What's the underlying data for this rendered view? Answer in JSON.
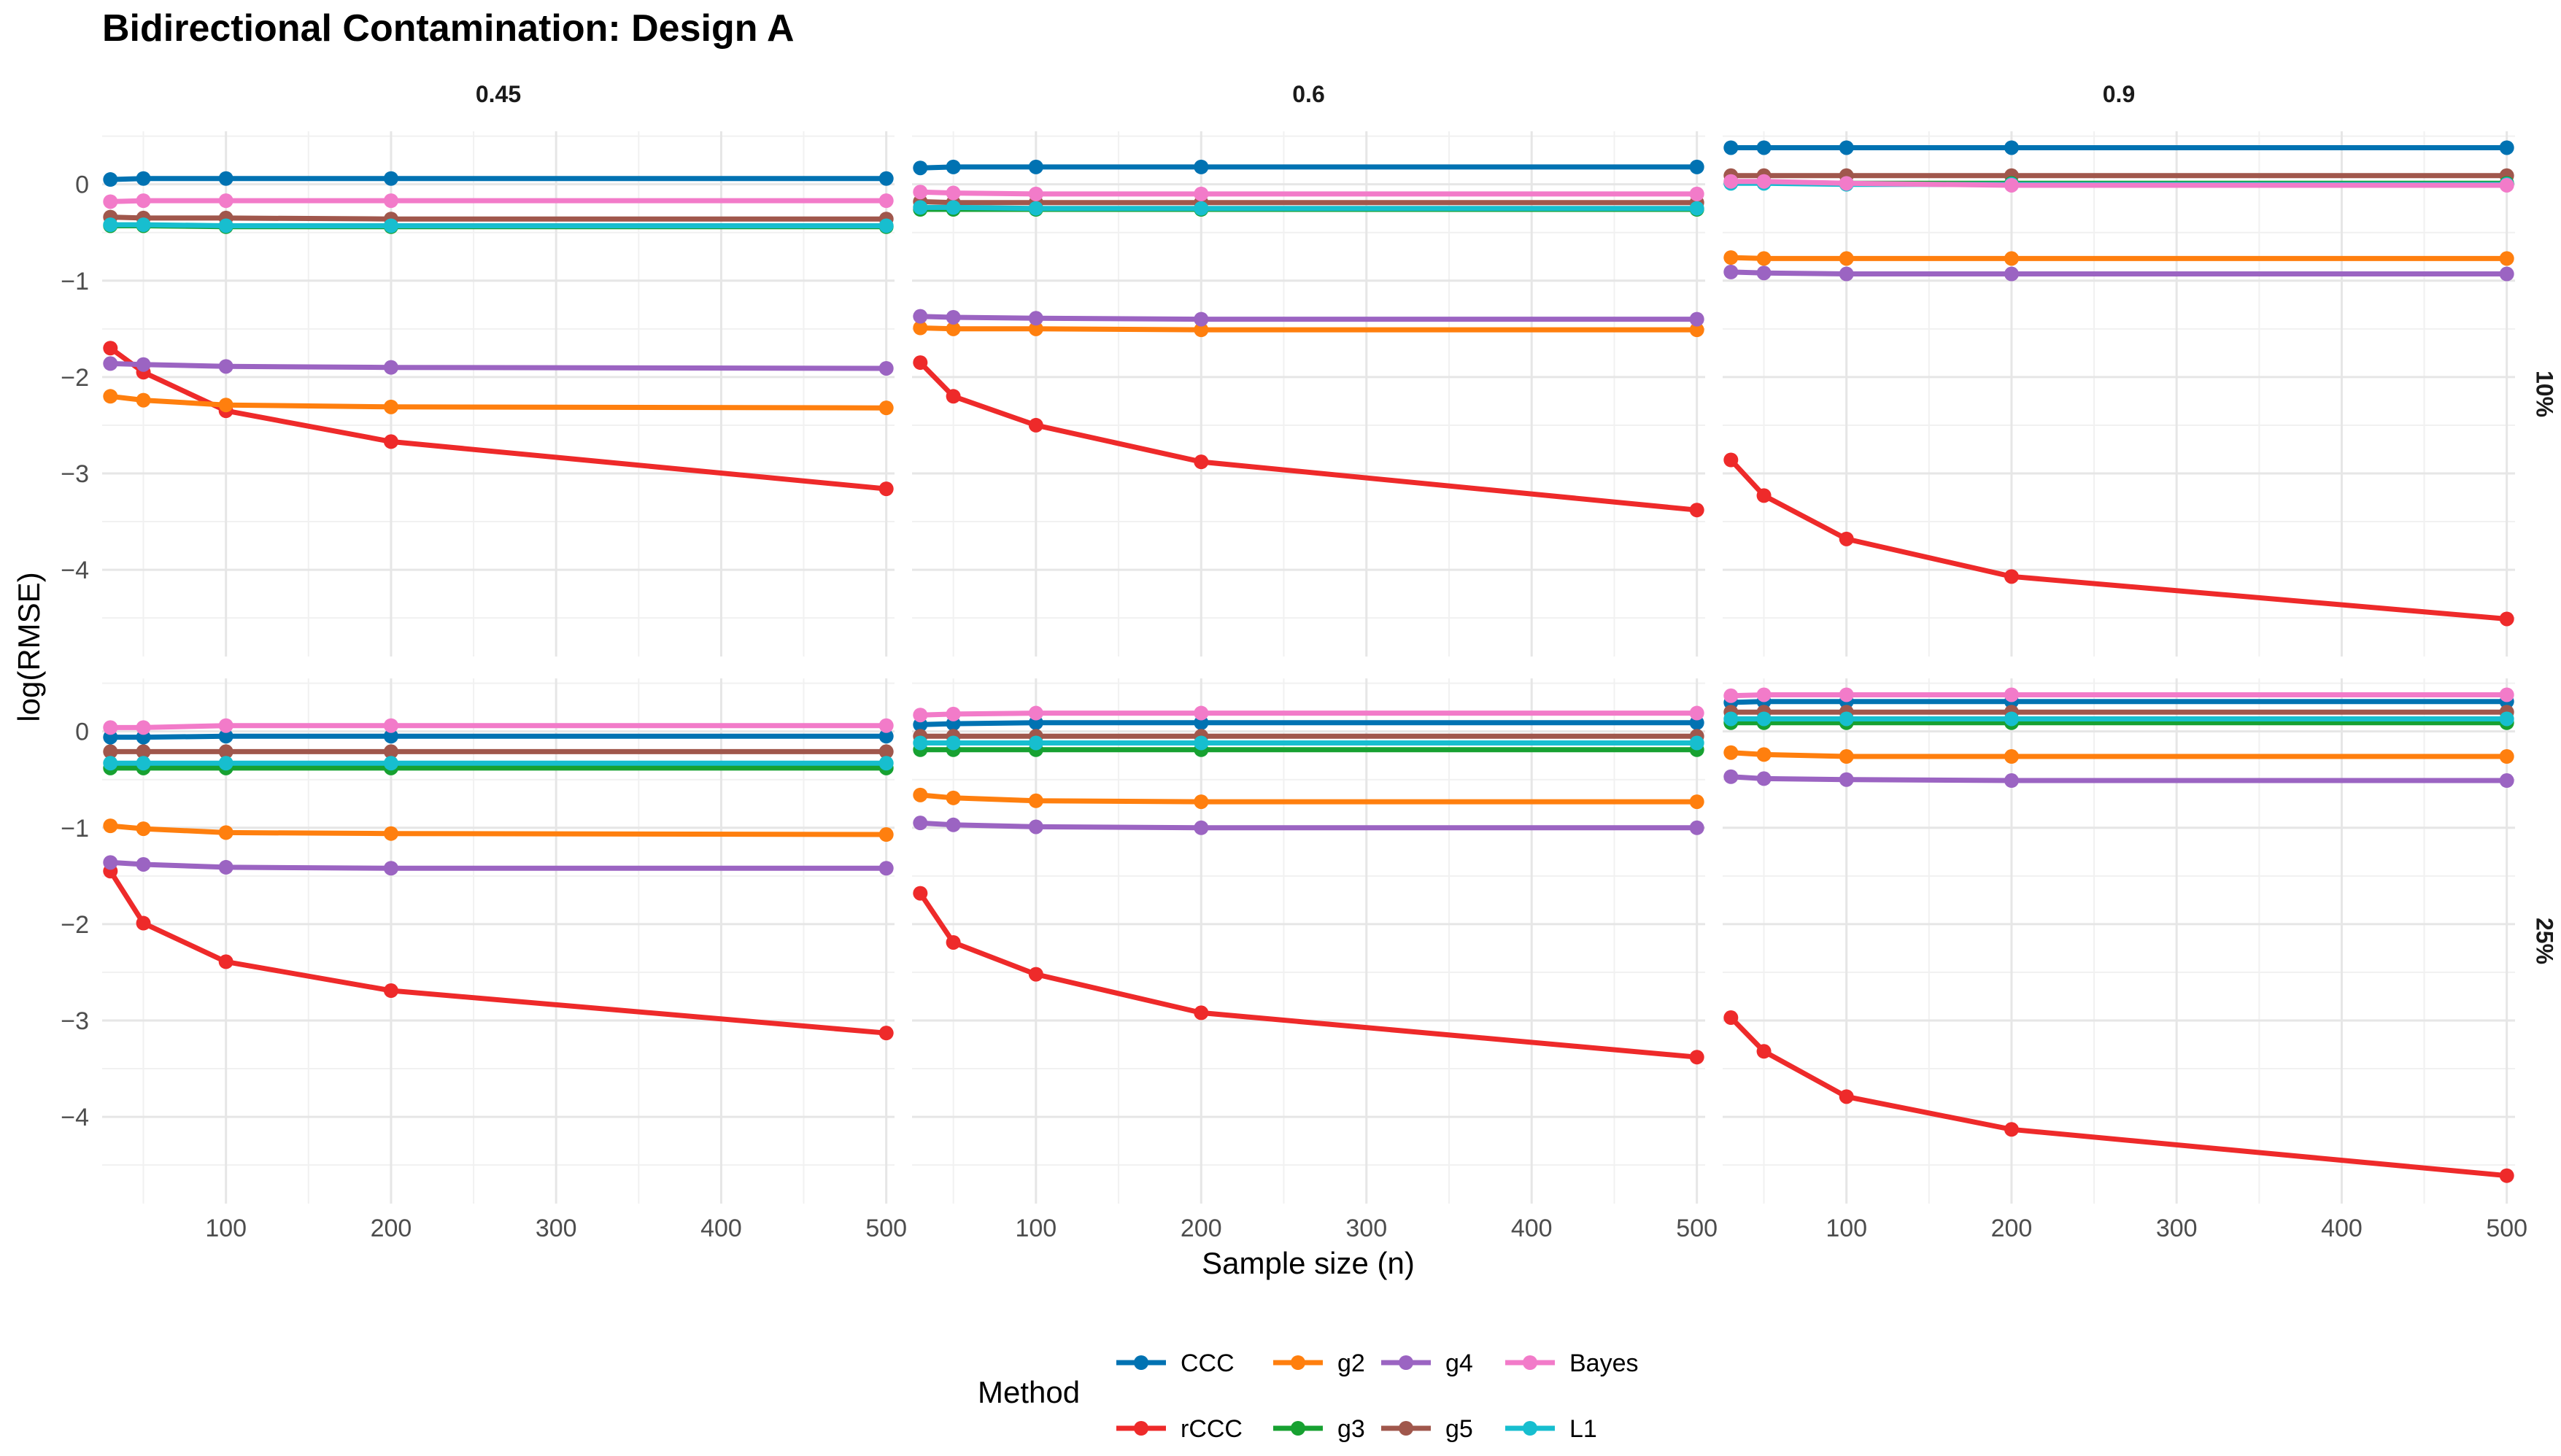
{
  "chart_data": {
    "type": "line",
    "title": "Bidirectional Contamination: Design A",
    "xlabel": "Sample size (n)",
    "ylabel": "log(RMSE)",
    "xlim": [
      25,
      505
    ],
    "ylim": [
      -4.9,
      0.55
    ],
    "x_ticks": [
      100,
      200,
      300,
      400,
      500
    ],
    "y_ticks": [
      0,
      -1,
      -2,
      -3,
      -4
    ],
    "x_tick_labels": [
      "100",
      "200",
      "300",
      "400",
      "500"
    ],
    "y_tick_labels": [
      "0",
      "−1",
      "−2",
      "−3",
      "−4"
    ],
    "x": [
      30,
      50,
      100,
      200,
      500
    ],
    "col_facets": [
      "0.45",
      "0.6",
      "0.9"
    ],
    "row_facets": [
      "10%",
      "25%"
    ],
    "legend": {
      "title": "Method",
      "position": "bottom",
      "entries": [
        {
          "name": "CCC",
          "color": "#0072B2"
        },
        {
          "name": "rCCC",
          "color": "#EE2A2A"
        },
        {
          "name": "g2",
          "color": "#FF7F0E"
        },
        {
          "name": "g3",
          "color": "#17A131"
        },
        {
          "name": "g4",
          "color": "#9B64C2"
        },
        {
          "name": "g5",
          "color": "#A0574C"
        },
        {
          "name": "Bayes",
          "color": "#F27BC9"
        },
        {
          "name": "L1",
          "color": "#17BECF"
        }
      ]
    },
    "panels": [
      {
        "col": "0.45",
        "row": "10%",
        "series": [
          {
            "name": "CCC",
            "values": [
              0.05,
              0.06,
              0.06,
              0.06,
              0.06
            ]
          },
          {
            "name": "rCCC",
            "values": [
              -1.7,
              -1.95,
              -2.35,
              -2.67,
              -3.16
            ]
          },
          {
            "name": "g2",
            "values": [
              -2.2,
              -2.24,
              -2.29,
              -2.31,
              -2.32
            ]
          },
          {
            "name": "g3",
            "values": [
              -0.43,
              -0.43,
              -0.44,
              -0.44,
              -0.44
            ]
          },
          {
            "name": "g4",
            "values": [
              -1.86,
              -1.87,
              -1.89,
              -1.9,
              -1.91
            ]
          },
          {
            "name": "g5",
            "values": [
              -0.34,
              -0.35,
              -0.35,
              -0.36,
              -0.36
            ]
          },
          {
            "name": "Bayes",
            "values": [
              -0.18,
              -0.17,
              -0.17,
              -0.17,
              -0.17
            ]
          },
          {
            "name": "L1",
            "values": [
              -0.42,
              -0.42,
              -0.43,
              -0.43,
              -0.43
            ]
          }
        ]
      },
      {
        "col": "0.6",
        "row": "10%",
        "series": [
          {
            "name": "CCC",
            "values": [
              0.17,
              0.18,
              0.18,
              0.18,
              0.18
            ]
          },
          {
            "name": "rCCC",
            "values": [
              -1.85,
              -2.2,
              -2.5,
              -2.88,
              -3.38
            ]
          },
          {
            "name": "g2",
            "values": [
              -1.49,
              -1.5,
              -1.5,
              -1.51,
              -1.51
            ]
          },
          {
            "name": "g3",
            "values": [
              -0.26,
              -0.26,
              -0.26,
              -0.26,
              -0.26
            ]
          },
          {
            "name": "g4",
            "values": [
              -1.37,
              -1.38,
              -1.39,
              -1.4,
              -1.4
            ]
          },
          {
            "name": "g5",
            "values": [
              -0.18,
              -0.19,
              -0.19,
              -0.19,
              -0.19
            ]
          },
          {
            "name": "Bayes",
            "values": [
              -0.08,
              -0.09,
              -0.1,
              -0.1,
              -0.1
            ]
          },
          {
            "name": "L1",
            "values": [
              -0.24,
              -0.24,
              -0.25,
              -0.25,
              -0.25
            ]
          }
        ]
      },
      {
        "col": "0.9",
        "row": "10%",
        "series": [
          {
            "name": "CCC",
            "values": [
              0.38,
              0.38,
              0.38,
              0.38,
              0.38
            ]
          },
          {
            "name": "rCCC",
            "values": [
              -2.86,
              -3.23,
              -3.68,
              -4.07,
              -4.51
            ]
          },
          {
            "name": "g2",
            "values": [
              -0.76,
              -0.77,
              -0.77,
              -0.77,
              -0.77
            ]
          },
          {
            "name": "g3",
            "values": [
              0.02,
              0.02,
              0.01,
              0.01,
              0.01
            ]
          },
          {
            "name": "g4",
            "values": [
              -0.91,
              -0.92,
              -0.93,
              -0.93,
              -0.93
            ]
          },
          {
            "name": "g5",
            "values": [
              0.09,
              0.09,
              0.09,
              0.09,
              0.09
            ]
          },
          {
            "name": "Bayes",
            "values": [
              0.03,
              0.03,
              0.01,
              -0.01,
              -0.01
            ]
          },
          {
            "name": "L1",
            "values": [
              0.01,
              0.01,
              0.0,
              0.0,
              0.0
            ]
          }
        ]
      },
      {
        "col": "0.45",
        "row": "25%",
        "series": [
          {
            "name": "CCC",
            "values": [
              -0.06,
              -0.06,
              -0.05,
              -0.05,
              -0.05
            ]
          },
          {
            "name": "rCCC",
            "values": [
              -1.45,
              -1.99,
              -2.39,
              -2.69,
              -3.13
            ]
          },
          {
            "name": "g2",
            "values": [
              -0.98,
              -1.01,
              -1.05,
              -1.06,
              -1.07
            ]
          },
          {
            "name": "g3",
            "values": [
              -0.38,
              -0.38,
              -0.38,
              -0.38,
              -0.38
            ]
          },
          {
            "name": "g4",
            "values": [
              -1.36,
              -1.38,
              -1.41,
              -1.42,
              -1.42
            ]
          },
          {
            "name": "g5",
            "values": [
              -0.21,
              -0.21,
              -0.21,
              -0.21,
              -0.21
            ]
          },
          {
            "name": "Bayes",
            "values": [
              0.04,
              0.04,
              0.06,
              0.06,
              0.06
            ]
          },
          {
            "name": "L1",
            "values": [
              -0.33,
              -0.33,
              -0.33,
              -0.33,
              -0.33
            ]
          }
        ]
      },
      {
        "col": "0.6",
        "row": "25%",
        "series": [
          {
            "name": "CCC",
            "values": [
              0.07,
              0.08,
              0.09,
              0.09,
              0.09
            ]
          },
          {
            "name": "rCCC",
            "values": [
              -1.68,
              -2.19,
              -2.52,
              -2.92,
              -3.38
            ]
          },
          {
            "name": "g2",
            "values": [
              -0.66,
              -0.69,
              -0.72,
              -0.73,
              -0.73
            ]
          },
          {
            "name": "g3",
            "values": [
              -0.19,
              -0.19,
              -0.19,
              -0.19,
              -0.19
            ]
          },
          {
            "name": "g4",
            "values": [
              -0.95,
              -0.97,
              -0.99,
              -1.0,
              -1.0
            ]
          },
          {
            "name": "g5",
            "values": [
              -0.05,
              -0.05,
              -0.05,
              -0.05,
              -0.05
            ]
          },
          {
            "name": "Bayes",
            "values": [
              0.17,
              0.18,
              0.19,
              0.19,
              0.19
            ]
          },
          {
            "name": "L1",
            "values": [
              -0.12,
              -0.12,
              -0.12,
              -0.12,
              -0.12
            ]
          }
        ]
      },
      {
        "col": "0.9",
        "row": "25%",
        "series": [
          {
            "name": "CCC",
            "values": [
              0.3,
              0.31,
              0.31,
              0.31,
              0.31
            ]
          },
          {
            "name": "rCCC",
            "values": [
              -2.97,
              -3.32,
              -3.79,
              -4.13,
              -4.61
            ]
          },
          {
            "name": "g2",
            "values": [
              -0.22,
              -0.24,
              -0.26,
              -0.26,
              -0.26
            ]
          },
          {
            "name": "g3",
            "values": [
              0.09,
              0.09,
              0.09,
              0.09,
              0.09
            ]
          },
          {
            "name": "g4",
            "values": [
              -0.47,
              -0.49,
              -0.5,
              -0.51,
              -0.51
            ]
          },
          {
            "name": "g5",
            "values": [
              0.2,
              0.2,
              0.2,
              0.2,
              0.2
            ]
          },
          {
            "name": "Bayes",
            "values": [
              0.37,
              0.38,
              0.38,
              0.38,
              0.38
            ]
          },
          {
            "name": "L1",
            "values": [
              0.13,
              0.13,
              0.13,
              0.13,
              0.13
            ]
          }
        ]
      }
    ]
  }
}
